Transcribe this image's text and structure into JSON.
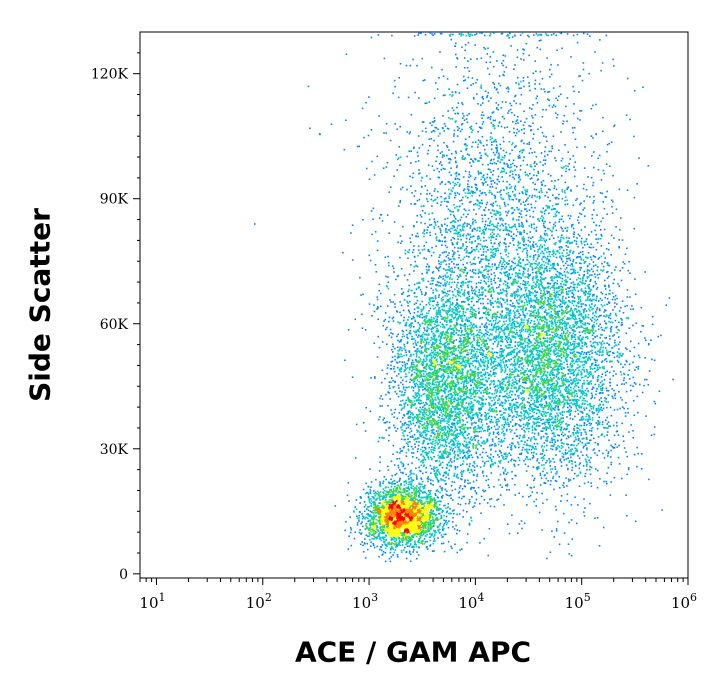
{
  "chart_data": {
    "type": "scatter",
    "title": "",
    "xlabel": "ACE / GAM APC",
    "ylabel": "Side Scatter",
    "x_scale": "log",
    "xlim": [
      7,
      1000000
    ],
    "ylim": [
      -1000,
      130000
    ],
    "x_ticks": [
      {
        "value": 10,
        "base": "10",
        "exp": "1"
      },
      {
        "value": 100,
        "base": "10",
        "exp": "2"
      },
      {
        "value": 1000,
        "base": "10",
        "exp": "3"
      },
      {
        "value": 10000,
        "base": "10",
        "exp": "4"
      },
      {
        "value": 100000,
        "base": "10",
        "exp": "5"
      },
      {
        "value": 1000000,
        "base": "10",
        "exp": "6"
      }
    ],
    "y_ticks": [
      {
        "value": 0,
        "label": "0"
      },
      {
        "value": 30000,
        "label": "30K"
      },
      {
        "value": 60000,
        "label": "60K"
      },
      {
        "value": 90000,
        "label": "90K"
      },
      {
        "value": 120000,
        "label": "120K"
      }
    ],
    "grid": false,
    "legend": "none",
    "density_colors": [
      "#0000ff",
      "#0088ff",
      "#00c8c8",
      "#40d840",
      "#ffff00",
      "#ff8000",
      "#ff0000"
    ],
    "populations": [
      {
        "x_center": 2000,
        "y_center": 14000,
        "x_spread_decades": 0.18,
        "y_spread": 3500,
        "points": 2600
      },
      {
        "x_center": 50000,
        "y_center": 52000,
        "x_spread_decades": 0.35,
        "y_spread": 15000,
        "points": 4500
      },
      {
        "x_center": 5000,
        "y_center": 45000,
        "x_spread_decades": 0.25,
        "y_spread": 13000,
        "points": 3500
      },
      {
        "x_center": 15000,
        "y_center": 80000,
        "x_spread_decades": 0.5,
        "y_spread": 25000,
        "points": 3200
      }
    ]
  }
}
